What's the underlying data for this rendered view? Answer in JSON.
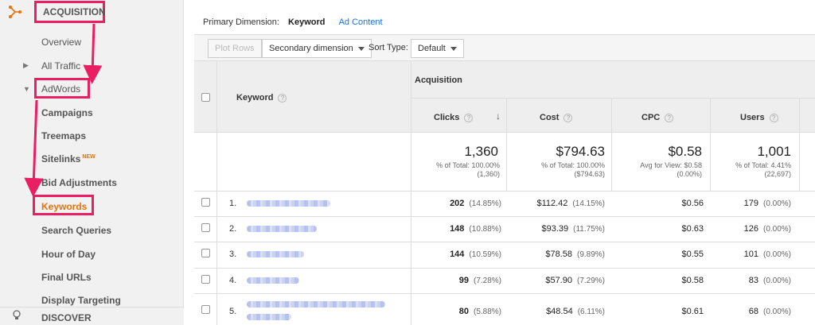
{
  "sidebar": {
    "section_title": "ACQUISITION",
    "items": [
      {
        "label": "Overview"
      },
      {
        "label": "All Traffic"
      },
      {
        "label": "AdWords"
      },
      {
        "label": "Campaigns"
      },
      {
        "label": "Treemaps"
      },
      {
        "label": "Sitelinks",
        "badge": "NEW"
      },
      {
        "label": "Bid Adjustments"
      },
      {
        "label": "Keywords"
      },
      {
        "label": "Search Queries"
      },
      {
        "label": "Hour of Day"
      },
      {
        "label": "Final URLs"
      },
      {
        "label": "Display Targeting"
      }
    ],
    "discover": "DISCOVER",
    "accent_color": "#e91e63",
    "active_color": "#e8710a"
  },
  "primary_dimension": {
    "label": "Primary Dimension:",
    "active": "Keyword",
    "other": "Ad Content"
  },
  "toolbar": {
    "plot_rows": "Plot Rows",
    "secondary_dimension": "Secondary dimension",
    "sort_type_label": "Sort Type:",
    "sort_type_value": "Default"
  },
  "table": {
    "keyword_header": "Keyword",
    "group_header": "Acquisition",
    "columns": [
      {
        "label": "Clicks"
      },
      {
        "label": "Cost"
      },
      {
        "label": "CPC"
      },
      {
        "label": "Users"
      }
    ],
    "totals": {
      "clicks": {
        "value": "1,360",
        "line1": "% of Total: 100.00%",
        "line2": "(1,360)"
      },
      "cost": {
        "value": "$794.63",
        "line1": "% of Total: 100.00%",
        "line2": "($794.63)"
      },
      "cpc": {
        "value": "$0.58",
        "line1": "Avg for View: $0.58",
        "line2": "(0.00%)"
      },
      "users": {
        "value": "1,001",
        "line1": "% of Total: 4.41%",
        "line2": "(22,697)"
      }
    },
    "rows": [
      {
        "num": "1.",
        "clicks": "202",
        "clicks_pct": "(14.85%)",
        "cost": "$112.42",
        "cost_pct": "(14.15%)",
        "cpc": "$0.56",
        "users": "179",
        "users_pct": "(0.00%)"
      },
      {
        "num": "2.",
        "clicks": "148",
        "clicks_pct": "(10.88%)",
        "cost": "$93.39",
        "cost_pct": "(11.75%)",
        "cpc": "$0.63",
        "users": "126",
        "users_pct": "(0.00%)"
      },
      {
        "num": "3.",
        "clicks": "144",
        "clicks_pct": "(10.59%)",
        "cost": "$78.58",
        "cost_pct": "(9.89%)",
        "cpc": "$0.55",
        "users": "101",
        "users_pct": "(0.00%)"
      },
      {
        "num": "4.",
        "clicks": "99",
        "clicks_pct": "(7.28%)",
        "cost": "$57.90",
        "cost_pct": "(7.29%)",
        "cpc": "$0.58",
        "users": "83",
        "users_pct": "(0.00%)"
      },
      {
        "num": "5.",
        "clicks": "80",
        "clicks_pct": "(5.88%)",
        "cost": "$48.54",
        "cost_pct": "(6.11%)",
        "cpc": "$0.61",
        "users": "68",
        "users_pct": "(0.00%)"
      }
    ]
  }
}
